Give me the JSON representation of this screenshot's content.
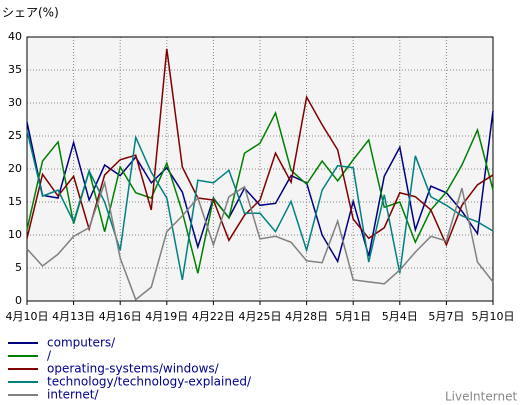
{
  "chart_data": {
    "type": "line",
    "y_label": "シェア(%)",
    "credit": "LiveInternet",
    "categories": [
      "4月10日",
      null,
      null,
      "4月13日",
      null,
      null,
      "4月16日",
      null,
      null,
      "4月19日",
      null,
      null,
      "4月22日",
      null,
      null,
      "4月25日",
      null,
      null,
      "4月28日",
      null,
      null,
      "5月1日",
      null,
      null,
      "5月4日",
      null,
      null,
      "5月7日",
      null,
      null,
      "5月10日"
    ],
    "ylim": [
      0,
      40
    ],
    "yticks": [
      0,
      5,
      10,
      15,
      20,
      25,
      30,
      35,
      40
    ],
    "grid": true,
    "series": [
      {
        "name": "computers/",
        "color": "#000080",
        "values": [
          27.1,
          16,
          15.6,
          24,
          15.3,
          20.6,
          19,
          21.8,
          17.9,
          20.2,
          16.5,
          8.2,
          15.6,
          12.6,
          17.1,
          14.5,
          14.8,
          19,
          17.9,
          10,
          6,
          15.1,
          6.8,
          18.9,
          23.3,
          10.8,
          17.4,
          16.4,
          13.6,
          10.2,
          28.8
        ]
      },
      {
        "name": "/",
        "color": "#008000",
        "values": [
          10.8,
          21.2,
          24.1,
          11.7,
          19.7,
          10.5,
          20.3,
          16.4,
          15.6,
          20.9,
          13.5,
          4.2,
          15.5,
          12.6,
          22.4,
          23.9,
          28.5,
          19.8,
          17.7,
          21.2,
          18.2,
          21.4,
          24.4,
          14.2,
          15,
          8.9,
          13.8,
          16.5,
          20.6,
          25.9,
          16.8
        ]
      },
      {
        "name": "operating-systems/windows/",
        "color": "#800000",
        "values": [
          9.5,
          19.2,
          15.9,
          18.9,
          10.9,
          19.1,
          21.4,
          22.1,
          13.8,
          38.2,
          20.3,
          15.6,
          15.3,
          9.2,
          13,
          15.3,
          22.4,
          18,
          30.9,
          26.7,
          22.9,
          12.4,
          9.5,
          11.1,
          16.4,
          15.8,
          13.8,
          8.5,
          14.5,
          17.6,
          19.1
        ]
      },
      {
        "name": "technology/technology-explained/",
        "color": "#008080",
        "values": [
          25.8,
          15.9,
          16.8,
          12,
          19.7,
          15,
          7.7,
          24.8,
          19.5,
          15.6,
          3.2,
          18.3,
          17.9,
          19.8,
          13.3,
          13.3,
          10.5,
          15.1,
          7.7,
          16.8,
          20.5,
          20.2,
          5.9,
          16.1,
          4.2,
          22,
          15.8,
          14.5,
          12.9,
          12,
          10.6
        ]
      },
      {
        "name": "internet/",
        "color": "#808080",
        "values": [
          7.9,
          5.3,
          7.1,
          9.8,
          11.1,
          17.9,
          6.5,
          0.2,
          2.1,
          10.5,
          12.9,
          15.6,
          8.5,
          15.8,
          17.3,
          9.4,
          9.8,
          8.9,
          6.1,
          5.8,
          12.1,
          3.2,
          2.9,
          2.6,
          4.7,
          7.4,
          9.8,
          9.1,
          17.1,
          5.9,
          2.9
        ]
      }
    ]
  }
}
